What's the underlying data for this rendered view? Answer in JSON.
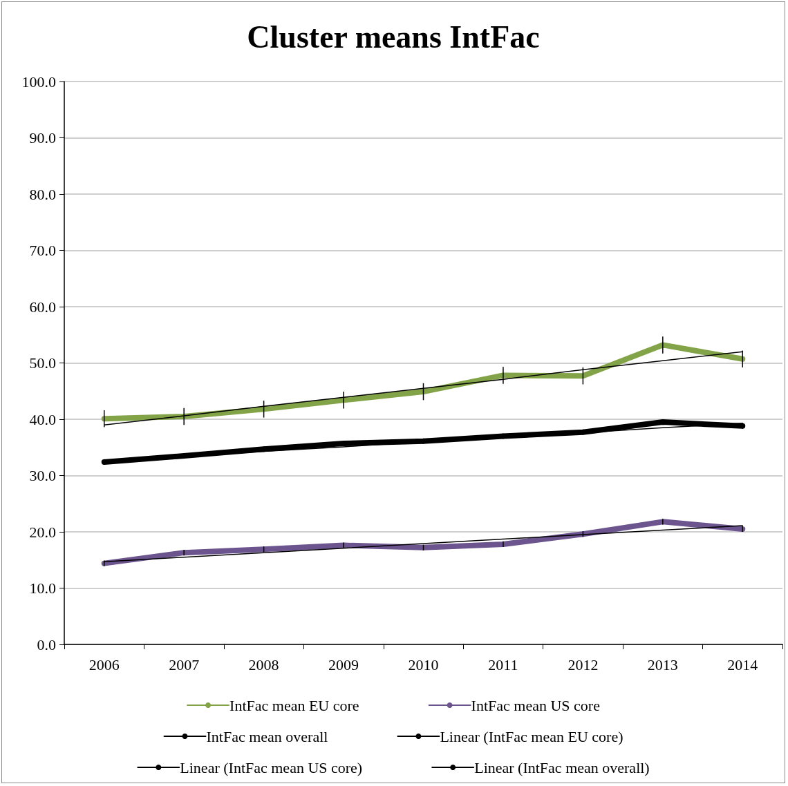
{
  "chart_data": {
    "type": "line",
    "title": "Cluster means IntFac",
    "categories": [
      "2006",
      "2007",
      "2008",
      "2009",
      "2010",
      "2011",
      "2012",
      "2013",
      "2014"
    ],
    "ylim": [
      0,
      100
    ],
    "yticks": [
      {
        "value": 0,
        "label": "0.0"
      },
      {
        "value": 10,
        "label": "10.0"
      },
      {
        "value": 20,
        "label": "20.0"
      },
      {
        "value": 30,
        "label": "30.0"
      },
      {
        "value": 40,
        "label": "40.0"
      },
      {
        "value": 50,
        "label": "50.0"
      },
      {
        "value": 60,
        "label": "60.0"
      },
      {
        "value": 70,
        "label": "70.0"
      },
      {
        "value": 80,
        "label": "80.0"
      },
      {
        "value": 90,
        "label": "90.0"
      },
      {
        "value": 100,
        "label": "100.0"
      }
    ],
    "grid": "y",
    "legend": "bottom",
    "marker": "none",
    "line_style": "solid",
    "series": [
      {
        "name": "IntFac mean EU core",
        "color": "#82a347",
        "values": [
          40.1,
          40.5,
          41.8,
          43.4,
          44.9,
          47.8,
          47.7,
          53.2,
          50.7
        ],
        "errors": [
          1.5,
          1.5,
          1.5,
          1.5,
          1.5,
          1.5,
          1.5,
          1.5,
          1.5
        ]
      },
      {
        "name": "IntFac mean US core",
        "color": "#6c548f",
        "values": [
          14.4,
          16.3,
          16.9,
          17.6,
          17.2,
          17.8,
          19.6,
          21.8,
          20.5
        ],
        "errors": [
          0.5,
          0.5,
          0.5,
          0.5,
          0.5,
          0.5,
          0.5,
          0.5,
          0.5
        ]
      },
      {
        "name": "IntFac mean overall",
        "color": "#000000",
        "values": [
          32.4,
          33.5,
          34.7,
          35.7,
          36.1,
          37.0,
          37.7,
          39.5,
          38.8
        ],
        "errors": [
          0.5,
          0.5,
          0.5,
          0.5,
          0.5,
          0.5,
          0.5,
          0.5,
          0.5
        ]
      },
      {
        "name": "Linear (IntFac mean EU core)",
        "type": "line",
        "color": "#000000",
        "values": [
          39.0,
          40.6,
          42.3,
          43.9,
          45.5,
          47.1,
          48.8,
          50.4,
          52.0
        ]
      },
      {
        "name": "Linear (IntFac mean US core)",
        "type": "line",
        "color": "#000000",
        "values": [
          14.7,
          15.5,
          16.3,
          17.1,
          17.9,
          18.7,
          19.5,
          20.3,
          21.1
        ]
      },
      {
        "name": "Linear (IntFac mean overall)",
        "type": "line",
        "color": "#000000",
        "values": [
          32.6,
          33.4,
          34.3,
          35.1,
          36.0,
          36.8,
          37.6,
          38.5,
          39.3
        ]
      }
    ]
  }
}
